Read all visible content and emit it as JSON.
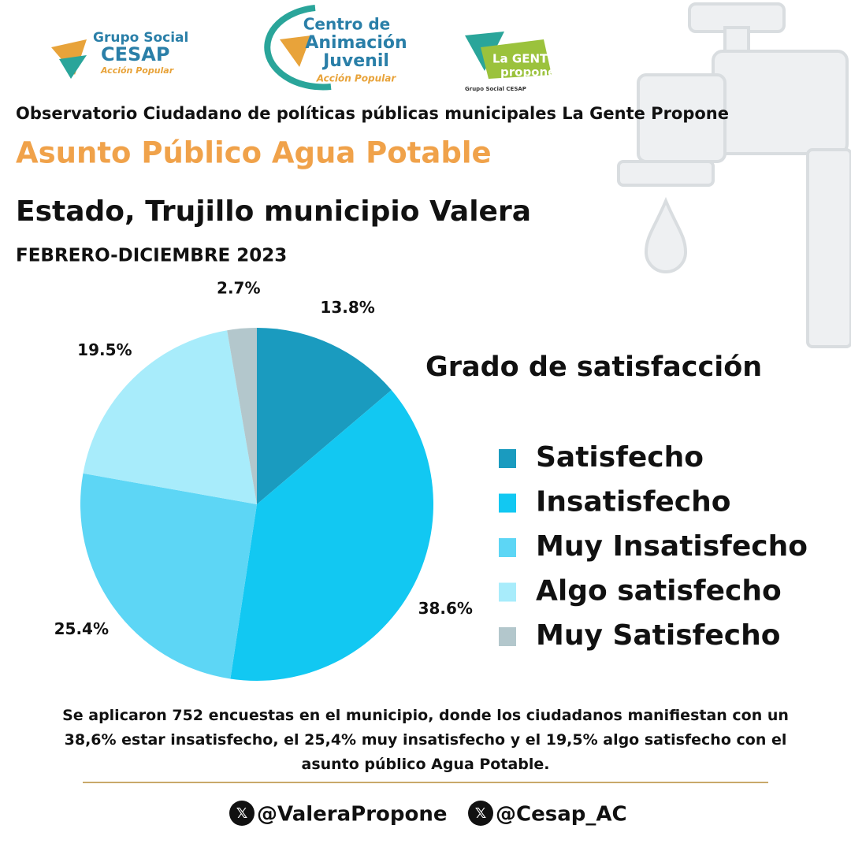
{
  "logos": {
    "cesap": [
      "Grupo Social",
      "CESAP",
      "Acción Popular"
    ],
    "centro": [
      "Centro de",
      "Animación",
      "Juvenil",
      "Acción Popular"
    ],
    "gente": [
      "La GENTE",
      "propone",
      "Grupo Social CESAP"
    ]
  },
  "header": {
    "observatory": "Observatorio Ciudadano de políticas públicas municipales La Gente Propone",
    "topic": "Asunto Público Agua Potable",
    "location": "Estado,  Trujillo municipio Valera",
    "period": "FEBRERO-DICIEMBRE 2023"
  },
  "chart_data": {
    "type": "pie",
    "title": "Grado de satisfacción",
    "categories": [
      "Satisfecho",
      "Insatisfecho",
      "Muy Insatisfecho",
      "Algo satisfecho",
      "Muy Satisfecho"
    ],
    "values": [
      13.8,
      38.6,
      25.4,
      19.5,
      2.7
    ],
    "value_labels": [
      "13.8%",
      "38.6%",
      "25.4%",
      "19.5%",
      "2.7%"
    ],
    "colors": [
      "#1a9bbf",
      "#12c8f2",
      "#5dd6f5",
      "#a8ecfb",
      "#b3c7cc"
    ]
  },
  "footer": {
    "summary": "Se aplicaron 752 encuestas en el municipio, donde los ciudadanos manifiestan con un 38,6% estar insatisfecho, el 25,4% muy insatisfecho y el 19,5% algo satisfecho con el asunto público Agua Potable.",
    "social": [
      "@ValeraPropone",
      "@Cesap_AC"
    ]
  }
}
